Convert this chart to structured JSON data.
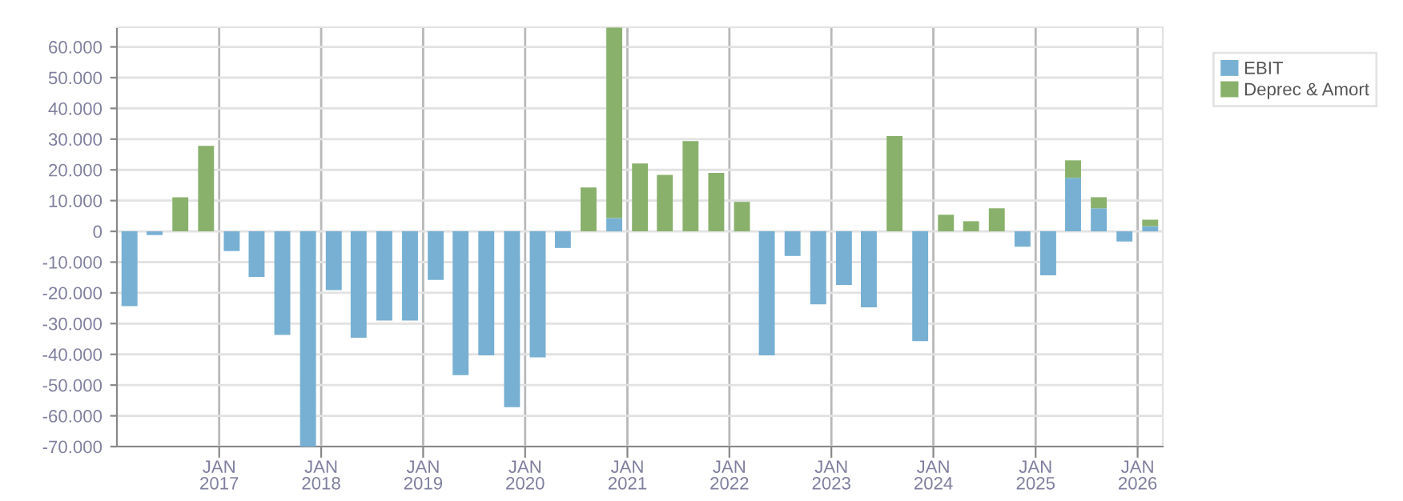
{
  "chart_data": {
    "type": "bar",
    "stacked": true,
    "x": [
      "2016-02-15",
      "2016-05-15",
      "2016-08-15",
      "2016-11-15",
      "2017-02-15",
      "2017-05-15",
      "2017-08-15",
      "2017-11-15",
      "2018-02-15",
      "2018-05-15",
      "2018-08-15",
      "2018-11-15",
      "2019-02-15",
      "2019-05-15",
      "2019-08-15",
      "2019-11-15",
      "2020-02-15",
      "2020-05-15",
      "2020-08-15",
      "2020-11-15",
      "2021-02-15",
      "2021-05-15",
      "2021-08-15",
      "2021-11-15",
      "2022-02-15",
      "2022-05-15",
      "2022-08-15",
      "2022-11-15",
      "2023-02-15",
      "2023-05-15",
      "2023-08-15",
      "2023-11-15",
      "2024-02-15",
      "2024-05-15",
      "2024-08-15",
      "2024-11-15",
      "2025-02-15",
      "2025-05-15",
      "2025-08-15",
      "2025-11-15",
      "2026-02-15"
    ],
    "series": [
      {
        "name": "EBIT",
        "color": "#77b0d3",
        "values": [
          -24300,
          -1200,
          0,
          0,
          -6400,
          -14800,
          -33700,
          -70000,
          -19100,
          -34600,
          -29000,
          -29000,
          -15800,
          -46800,
          -40300,
          -57200,
          -41000,
          -5400,
          0,
          4300,
          0,
          0,
          0,
          0,
          0,
          -40300,
          -8000,
          -23700,
          -17400,
          -24700,
          0,
          -35700,
          0,
          0,
          0,
          -5000,
          -14300,
          17400,
          7500,
          -3300,
          1700
        ]
      },
      {
        "name": "Deprec & Amort",
        "color": "#89b16c",
        "values": [
          0,
          0,
          11100,
          27800,
          0,
          0,
          0,
          0,
          0,
          0,
          0,
          0,
          0,
          0,
          0,
          0,
          0,
          0,
          14300,
          62000,
          22100,
          18400,
          29400,
          19000,
          9600,
          0,
          0,
          0,
          0,
          0,
          31000,
          0,
          5400,
          3300,
          7500,
          0,
          0,
          5700,
          3600,
          0,
          2100
        ]
      }
    ],
    "ylim": [
      -70000,
      66400
    ],
    "yticks": [
      {
        "value": -70000,
        "label": "-70.000"
      },
      {
        "value": -60000,
        "label": "-60.000"
      },
      {
        "value": -50000,
        "label": "-50.000"
      },
      {
        "value": -40000,
        "label": "-40.000"
      },
      {
        "value": -30000,
        "label": "-30.000"
      },
      {
        "value": -20000,
        "label": "-20.000"
      },
      {
        "value": -10000,
        "label": "-10.000"
      },
      0,
      {
        "value": 10000,
        "label": "10.000"
      },
      {
        "value": 20000,
        "label": "20.000"
      },
      {
        "value": 30000,
        "label": "30.000"
      },
      {
        "value": 40000,
        "label": "40.000"
      },
      {
        "value": 50000,
        "label": "50.000"
      },
      {
        "value": 60000,
        "label": "60.000"
      }
    ],
    "xlim": [
      "2016-01-01",
      "2026-04-01"
    ],
    "xticks": [
      {
        "value": "2017-01-01",
        "label": "JAN\n2017"
      },
      {
        "value": "2018-01-01",
        "label": "JAN\n2018"
      },
      {
        "value": "2019-01-01",
        "label": "JAN\n2019"
      },
      {
        "value": "2020-01-01",
        "label": "JAN\n2020"
      },
      {
        "value": "2021-01-01",
        "label": "JAN\n2021"
      },
      {
        "value": "2022-01-01",
        "label": "JAN\n2022"
      },
      {
        "value": "2023-01-01",
        "label": "JAN\n2023"
      },
      {
        "value": "2024-01-01",
        "label": "JAN\n2024"
      },
      {
        "value": "2025-01-01",
        "label": "JAN\n2025"
      },
      {
        "value": "2026-01-01",
        "label": "JAN\n2026"
      }
    ],
    "grid": true,
    "legend": "top right"
  }
}
